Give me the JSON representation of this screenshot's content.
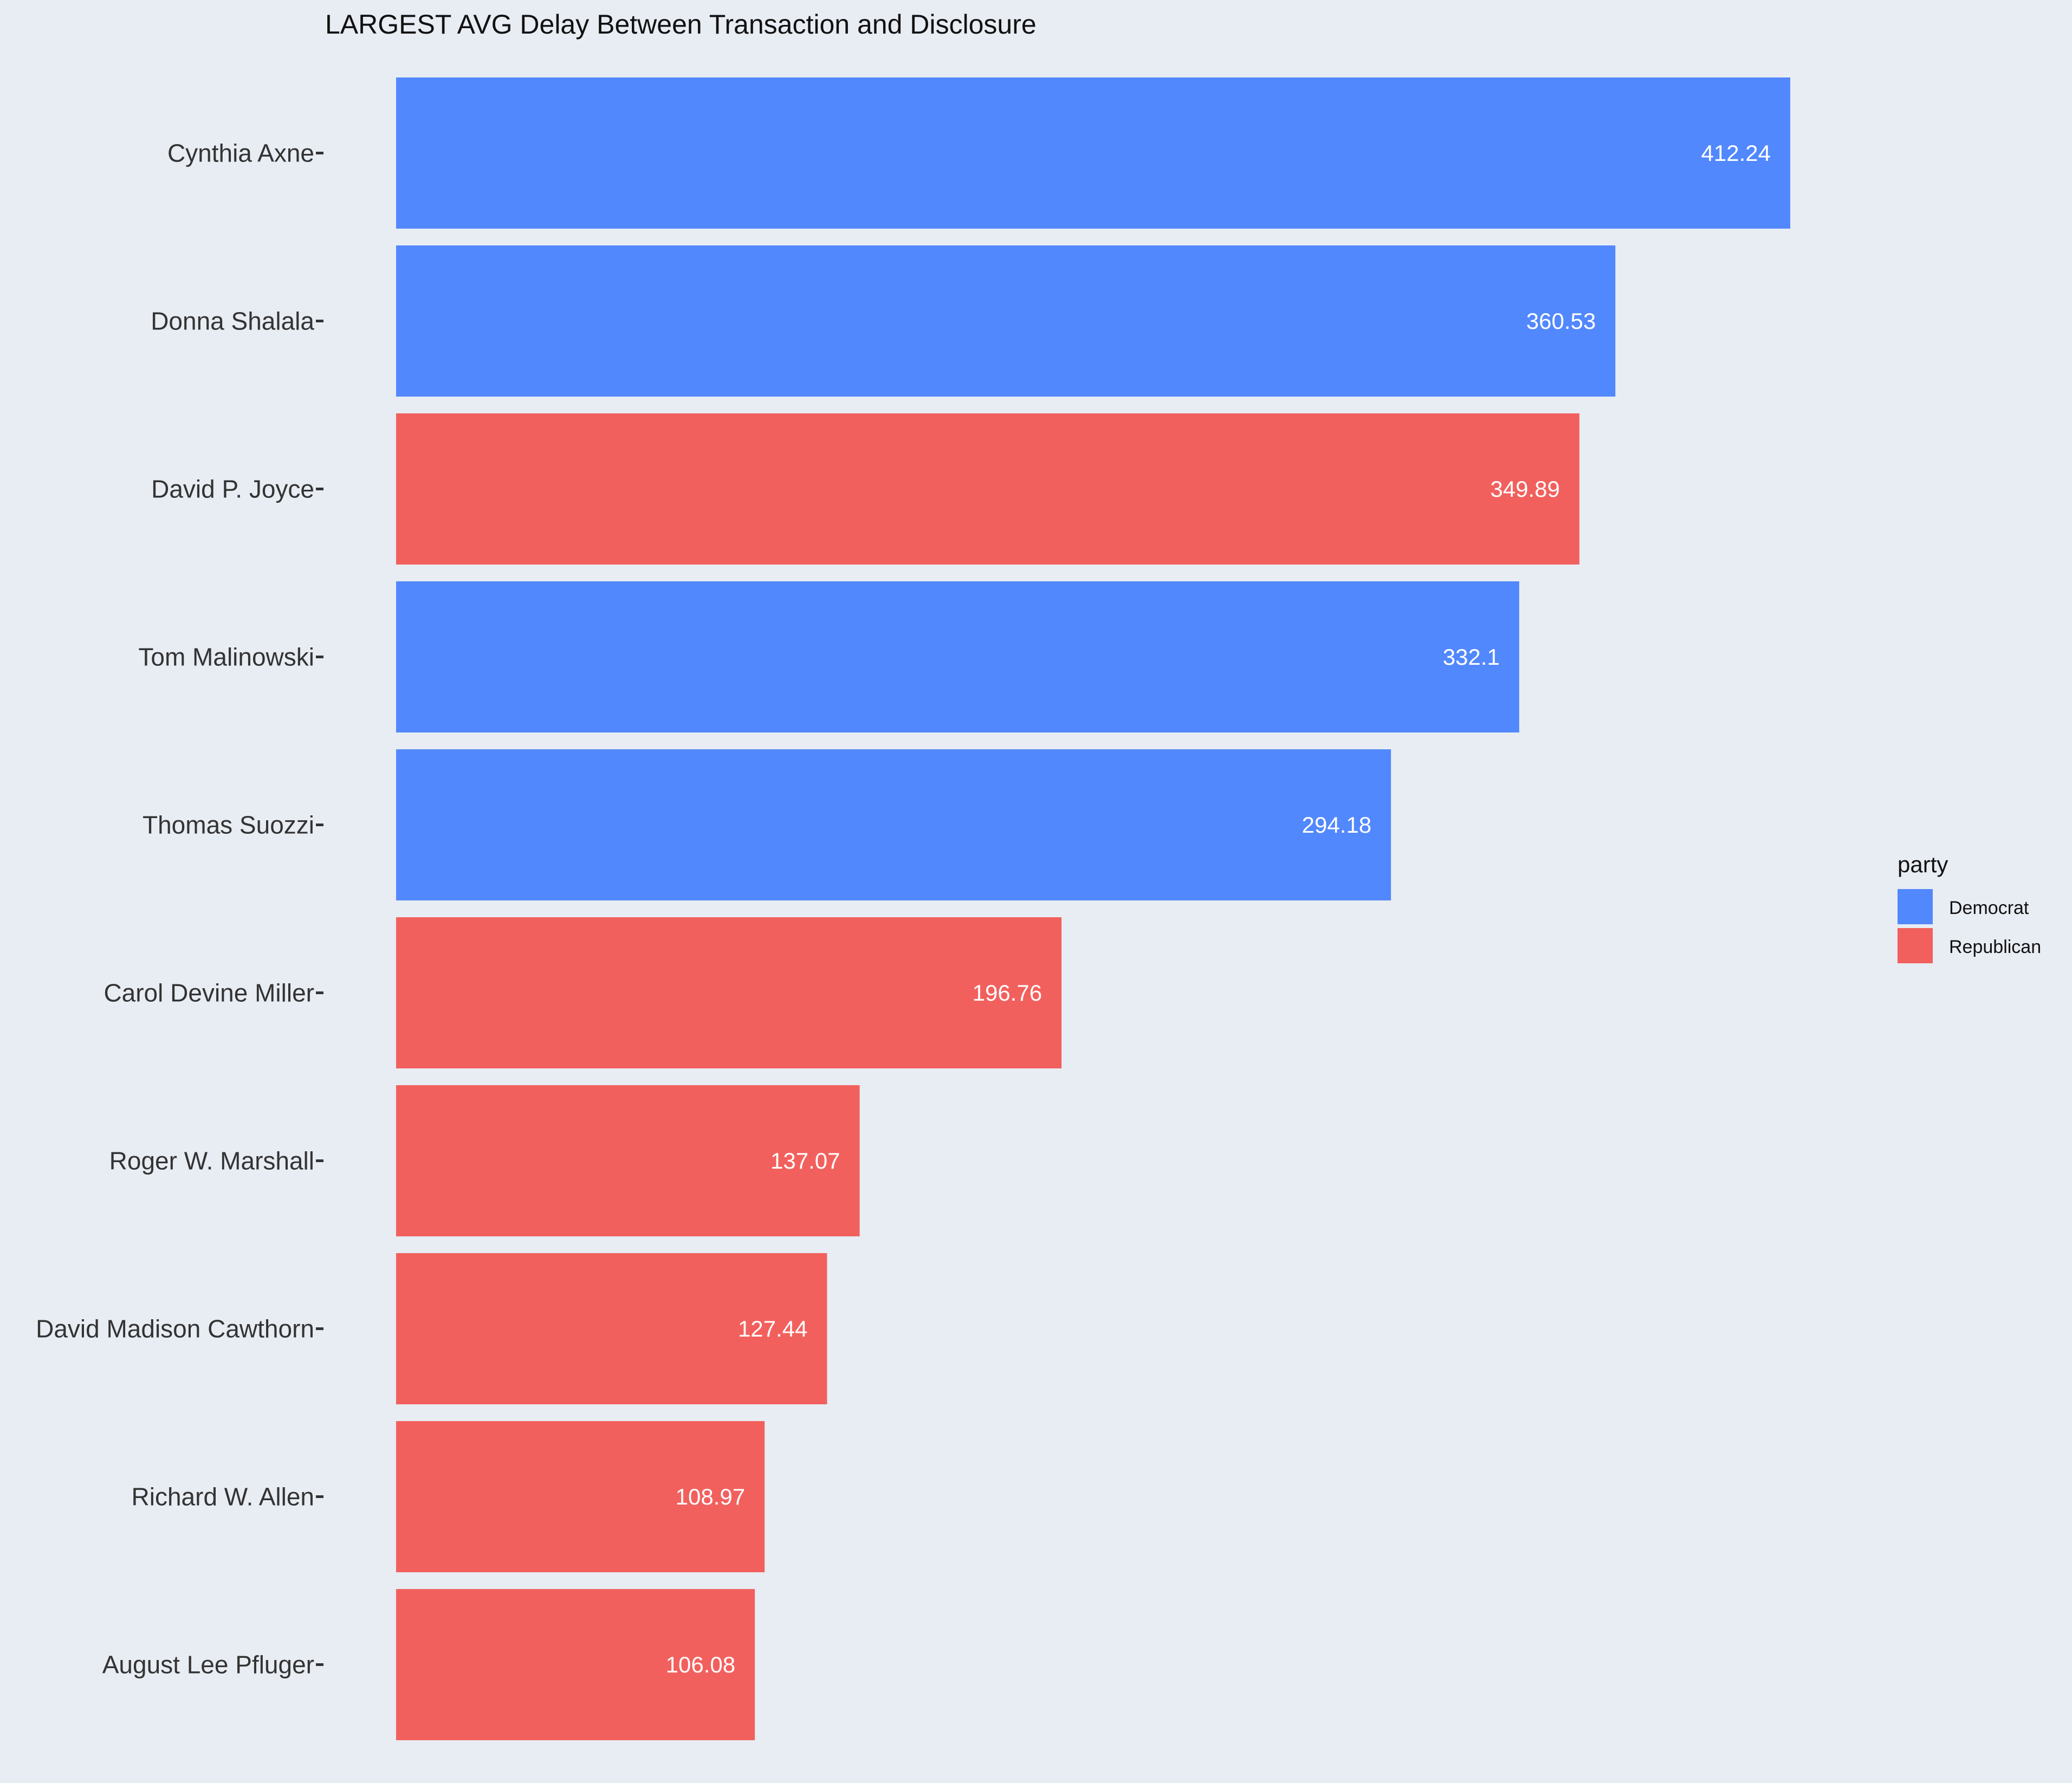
{
  "chart_data": {
    "type": "bar",
    "orientation": "horizontal",
    "title": "LARGEST AVG Delay Between Transaction and Disclosure",
    "xlabel": "",
    "ylabel": "",
    "xlim": [
      0,
      412.24
    ],
    "grid": false,
    "legend": {
      "title": "party",
      "placement": "right",
      "entries": [
        {
          "label": "Democrat",
          "color": "#5288FD"
        },
        {
          "label": "Republican",
          "color": "#F2605D"
        }
      ]
    },
    "categories": [
      "Cynthia Axne",
      "Donna Shalala",
      "David P. Joyce",
      "Tom Malinowski",
      "Thomas Suozzi",
      "Carol Devine Miller",
      "Roger W. Marshall",
      "David Madison Cawthorn",
      "Richard W. Allen",
      "August Lee Pfluger"
    ],
    "values": [
      412.24,
      360.53,
      349.89,
      332.1,
      294.18,
      196.76,
      137.07,
      127.44,
      108.97,
      106.08
    ],
    "value_labels": [
      "412.24",
      "360.53",
      "349.89",
      "332.1",
      "294.18",
      "196.76",
      "137.07",
      "127.44",
      "108.97",
      "106.08"
    ],
    "party": [
      "Democrat",
      "Democrat",
      "Republican",
      "Democrat",
      "Democrat",
      "Republican",
      "Republican",
      "Republican",
      "Republican",
      "Republican"
    ]
  }
}
